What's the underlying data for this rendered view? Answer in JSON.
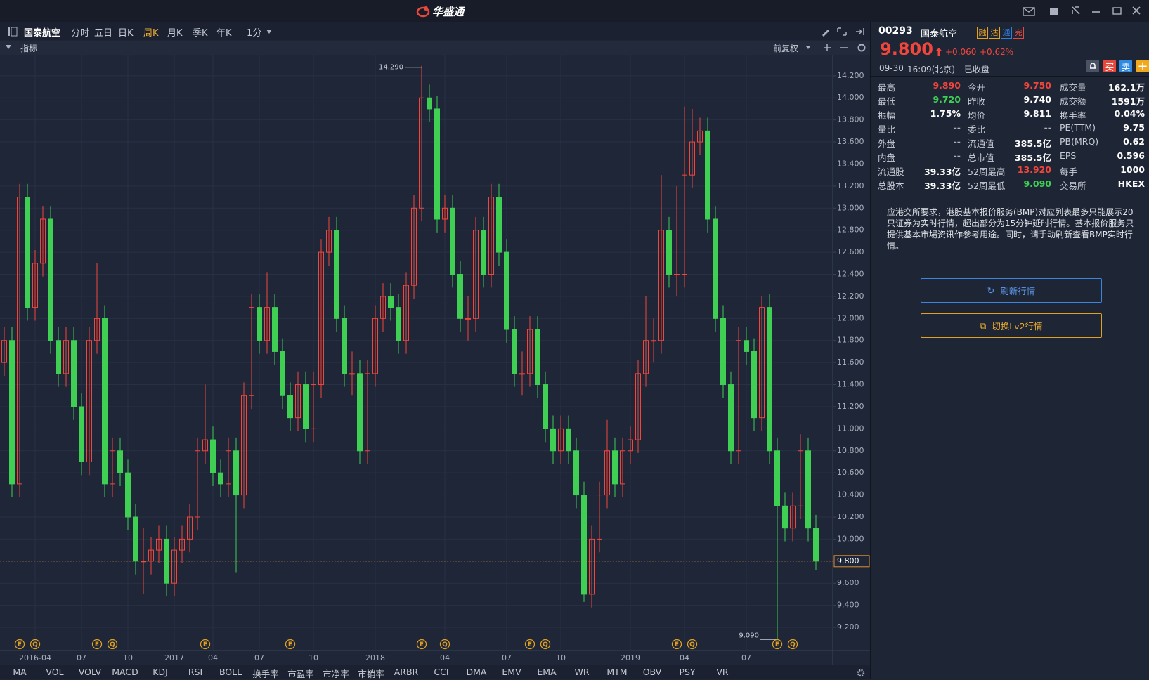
{
  "app": {
    "title": "华盛通"
  },
  "toolbar": {
    "stock": "国泰航空",
    "periods": [
      "分时",
      "五日",
      "日K",
      "周K",
      "月K",
      "季K",
      "年K",
      "1分"
    ],
    "active_period": "周K",
    "indicator": "指标",
    "adjust": "前复权"
  },
  "chart_data": {
    "type": "candlestick",
    "categories": [
      null,
      null,
      null,
      null,
      "2016-04",
      null,
      null,
      null,
      null,
      null,
      "07",
      null,
      null,
      null,
      null,
      null,
      "10",
      null,
      null,
      null,
      null,
      null,
      "2017",
      null,
      null,
      null,
      null,
      "04",
      null,
      null,
      null,
      null,
      null,
      "07",
      null,
      null,
      null,
      null,
      null,
      null,
      "10",
      null,
      null,
      null,
      null,
      null,
      null,
      null,
      "2018",
      null,
      null,
      null,
      null,
      null,
      null,
      null,
      null,
      "04",
      null,
      null,
      null,
      null,
      null,
      null,
      null,
      "07",
      null,
      null,
      null,
      null,
      null,
      null,
      "10",
      null,
      null,
      null,
      null,
      null,
      null,
      null,
      null,
      "2019",
      null,
      null,
      null,
      null,
      null,
      null,
      "04",
      null,
      null,
      null,
      null,
      null,
      null,
      null,
      "07",
      null,
      null,
      null,
      null,
      null,
      null,
      null,
      null,
      null
    ],
    "open": [
      11.6,
      11.8,
      10.5,
      13.1,
      12.1,
      12.5,
      12.9,
      11.8,
      11.5,
      11.8,
      11.2,
      10.7,
      11.8,
      12.0,
      10.5,
      10.8,
      10.6,
      10.2,
      9.8,
      9.8,
      9.9,
      10.0,
      9.6,
      9.9,
      10.0,
      10.2,
      10.8,
      10.9,
      10.6,
      10.5,
      10.8,
      10.4,
      11.3,
      12.1,
      11.8,
      12.1,
      11.7,
      11.3,
      11.1,
      11.4,
      11.0,
      11.4,
      12.6,
      12.8,
      12.0,
      11.5,
      11.5,
      10.8,
      11.5,
      12.0,
      12.2,
      12.1,
      11.8,
      12.3,
      13.0,
      14.0,
      13.9,
      12.9,
      13.0,
      12.4,
      12.0,
      12.0,
      12.8,
      12.4,
      13.1,
      12.6,
      11.9,
      11.5,
      11.5,
      11.9,
      11.4,
      11.0,
      10.8,
      11.0,
      10.8,
      10.4,
      9.5,
      10.0,
      10.4,
      10.8,
      10.5,
      10.8,
      10.9,
      11.5,
      11.8,
      11.8,
      12.8,
      12.4,
      12.4,
      13.3,
      13.6,
      13.7,
      12.9,
      12.0,
      11.4,
      10.8,
      11.8,
      11.7,
      11.1,
      12.1,
      10.8,
      10.3,
      10.1,
      10.3,
      10.8,
      10.1
    ],
    "high": [
      11.92,
      11.92,
      13.22,
      13.22,
      12.62,
      13.02,
      13.02,
      11.92,
      11.92,
      11.92,
      11.32,
      11.92,
      12.5,
      12.12,
      10.92,
      10.92,
      10.72,
      10.32,
      10.1,
      10.02,
      10.12,
      10.12,
      10.02,
      10.12,
      10.32,
      10.92,
      11.4,
      11.02,
      10.72,
      10.92,
      10.92,
      11.42,
      12.22,
      12.22,
      12.42,
      12.22,
      11.82,
      11.42,
      11.52,
      11.52,
      11.52,
      12.72,
      12.92,
      12.92,
      12.12,
      11.7,
      11.62,
      11.62,
      12.12,
      12.32,
      12.32,
      12.22,
      12.42,
      13.12,
      14.29,
      14.12,
      14.02,
      13.12,
      13.12,
      12.52,
      12.2,
      12.92,
      12.92,
      13.22,
      13.22,
      12.72,
      12.02,
      11.7,
      12.02,
      12.02,
      11.52,
      11.12,
      11.12,
      11.12,
      10.92,
      10.52,
      10.12,
      10.52,
      11.08,
      10.92,
      10.92,
      11.02,
      11.62,
      12.2,
      12.0,
      13.3,
      12.92,
      13.2,
      13.92,
      13.9,
      13.82,
      13.82,
      13.02,
      12.12,
      11.52,
      11.92,
      11.92,
      11.82,
      12.2,
      12.22,
      10.92,
      10.42,
      10.42,
      10.95,
      10.92,
      10.22
    ],
    "low": [
      11.48,
      10.38,
      10.38,
      11.98,
      11.98,
      12.38,
      11.68,
      11.38,
      11.38,
      11.08,
      10.58,
      10.58,
      11.68,
      10.38,
      10.38,
      10.48,
      10.08,
      9.68,
      9.5,
      9.68,
      9.78,
      9.48,
      9.48,
      9.78,
      9.88,
      10.08,
      10.68,
      10.48,
      10.38,
      10.38,
      9.7,
      10.28,
      11.18,
      11.68,
      11.68,
      11.58,
      11.18,
      10.98,
      10.98,
      10.88,
      10.88,
      11.28,
      12.48,
      11.88,
      11.38,
      11.3,
      10.68,
      10.68,
      11.38,
      11.88,
      11.98,
      11.68,
      11.68,
      12.18,
      12.88,
      13.78,
      12.78,
      12.78,
      12.28,
      11.88,
      11.8,
      11.88,
      12.28,
      12.28,
      12.48,
      11.78,
      11.38,
      11.3,
      11.38,
      11.28,
      10.88,
      10.68,
      10.68,
      10.68,
      10.28,
      9.43,
      9.38,
      9.88,
      10.28,
      10.38,
      10.38,
      10.68,
      10.78,
      11.38,
      11.6,
      11.68,
      12.28,
      12.2,
      12.28,
      13.18,
      13.48,
      12.78,
      11.88,
      11.28,
      10.68,
      10.68,
      11.58,
      10.98,
      10.98,
      10.68,
      9.09,
      9.98,
      9.98,
      10.18,
      9.98,
      9.72
    ],
    "close": [
      11.8,
      10.5,
      13.1,
      12.1,
      12.5,
      12.9,
      11.8,
      11.5,
      11.8,
      11.2,
      10.7,
      11.8,
      12.0,
      10.5,
      10.8,
      10.6,
      10.2,
      9.8,
      9.8,
      9.9,
      10.0,
      9.6,
      9.9,
      10.0,
      10.2,
      10.8,
      10.9,
      10.6,
      10.5,
      10.8,
      10.4,
      11.3,
      12.1,
      11.8,
      12.1,
      11.7,
      11.3,
      11.1,
      11.4,
      11.0,
      11.4,
      12.6,
      12.8,
      12.0,
      11.5,
      11.5,
      10.8,
      11.5,
      12.0,
      12.2,
      12.1,
      11.8,
      12.3,
      13.0,
      14.0,
      13.9,
      12.9,
      13.0,
      12.4,
      12.0,
      12.0,
      12.8,
      12.4,
      13.1,
      12.6,
      11.9,
      11.5,
      11.5,
      11.9,
      11.4,
      11.0,
      10.8,
      11.0,
      10.8,
      10.4,
      9.5,
      10.0,
      10.4,
      10.8,
      10.5,
      10.8,
      10.9,
      11.5,
      11.8,
      11.8,
      12.8,
      12.4,
      12.4,
      13.3,
      13.6,
      13.7,
      12.9,
      12.0,
      11.4,
      10.8,
      11.8,
      11.7,
      11.1,
      12.1,
      10.8,
      10.3,
      10.1,
      10.3,
      10.8,
      10.1,
      9.8
    ],
    "events": [
      null,
      null,
      "E",
      null,
      "Q",
      null,
      null,
      null,
      null,
      null,
      null,
      null,
      "E",
      null,
      "Q",
      null,
      null,
      null,
      null,
      null,
      null,
      null,
      null,
      null,
      null,
      null,
      "E",
      null,
      null,
      null,
      null,
      null,
      null,
      null,
      null,
      null,
      null,
      "E",
      null,
      null,
      null,
      null,
      null,
      null,
      null,
      null,
      null,
      null,
      null,
      null,
      null,
      null,
      null,
      null,
      "E",
      null,
      null,
      "Q",
      null,
      null,
      null,
      null,
      null,
      null,
      null,
      null,
      null,
      null,
      "E",
      null,
      "Q",
      null,
      null,
      null,
      null,
      null,
      null,
      null,
      null,
      null,
      null,
      null,
      null,
      null,
      null,
      null,
      null,
      "E",
      null,
      "Q",
      null,
      null,
      null,
      null,
      null,
      null,
      null,
      null,
      null,
      null,
      "E",
      null,
      "Q",
      null,
      null,
      null
    ],
    "up_color": "#f0463c",
    "down_color": "#3ecf53",
    "ylim": [
      8.99,
      14.39
    ],
    "yticks": [
      {
        "value": 9.2,
        "label": "9.200"
      },
      {
        "value": 9.4,
        "label": "9.400"
      },
      {
        "value": 9.6,
        "label": "9.600"
      },
      {
        "value": 9.8,
        "label": "9.800"
      },
      {
        "value": 10.0,
        "label": "10.000"
      },
      {
        "value": 10.2,
        "label": "10.200"
      },
      {
        "value": 10.4,
        "label": "10.400"
      },
      {
        "value": 10.6,
        "label": "10.600"
      },
      {
        "value": 10.8,
        "label": "10.800"
      },
      {
        "value": 11.0,
        "label": "11.000"
      },
      {
        "value": 11.2,
        "label": "11.200"
      },
      {
        "value": 11.4,
        "label": "11.400"
      },
      {
        "value": 11.6,
        "label": "11.600"
      },
      {
        "value": 11.8,
        "label": "11.800"
      },
      {
        "value": 12.0,
        "label": "12.000"
      },
      {
        "value": 12.2,
        "label": "12.200"
      },
      {
        "value": 12.4,
        "label": "12.400"
      },
      {
        "value": 12.6,
        "label": "12.600"
      },
      {
        "value": 12.8,
        "label": "12.800"
      },
      {
        "value": 13.0,
        "label": "13.000"
      },
      {
        "value": 13.2,
        "label": "13.200"
      },
      {
        "value": 13.4,
        "label": "13.400"
      },
      {
        "value": 13.6,
        "label": "13.600"
      },
      {
        "value": 13.8,
        "label": "13.800"
      },
      {
        "value": 14.0,
        "label": "14.000"
      },
      {
        "value": 14.2,
        "label": "14.200"
      }
    ],
    "grid": true,
    "max_label": "14.290",
    "min_label": "9.090",
    "last_price": 9.8,
    "last_price_label": "9.800"
  },
  "indicators": [
    "MA",
    "VOL",
    "VOLV",
    "MACD",
    "KDJ",
    "RSI",
    "BOLL",
    "换手率",
    "市盈率",
    "市净率",
    "市销率",
    "ARBR",
    "CCI",
    "DMA",
    "EMV",
    "EMA",
    "WR",
    "MTM",
    "OBV",
    "PSY",
    "VR"
  ],
  "quote": {
    "code": "00293",
    "name": "国泰航空",
    "badges": [
      {
        "text": "融",
        "color": "#e8a21e"
      },
      {
        "text": "沽",
        "color": "#e8a21e"
      },
      {
        "text": "通",
        "color": "#2f7fe0"
      },
      {
        "text": "完",
        "color": "#e8483b"
      }
    ],
    "price": "9.800",
    "change": "+0.060",
    "change_pct": "+0.62%",
    "date": "09-30",
    "time": "16:09(北京)",
    "status": "已收盘",
    "buy": "买",
    "sell": "卖",
    "stats": [
      [
        {
          "label": "最高",
          "value": "9.890",
          "color": "#f0463c"
        },
        {
          "label": "今开",
          "value": "9.750",
          "color": "#f0463c"
        },
        {
          "label": "成交量",
          "value": "162.1万",
          "color": "#ffffff"
        }
      ],
      [
        {
          "label": "最低",
          "value": "9.720",
          "color": "#3ecf53"
        },
        {
          "label": "昨收",
          "value": "9.740",
          "color": "#ffffff"
        },
        {
          "label": "成交额",
          "value": "1591万",
          "color": "#ffffff"
        }
      ],
      [
        {
          "label": "振幅",
          "value": "1.75%",
          "color": "#ffffff"
        },
        {
          "label": "均价",
          "value": "9.811",
          "color": "#ffffff"
        },
        {
          "label": "换手率",
          "value": "0.04%",
          "color": "#ffffff"
        }
      ],
      [
        {
          "label": "量比",
          "value": "--",
          "color": "#aab0bd"
        },
        {
          "label": "委比",
          "value": "--",
          "color": "#aab0bd"
        },
        {
          "label": "PE(TTM)",
          "value": "9.75",
          "color": "#ffffff"
        }
      ],
      [
        {
          "label": "外盘",
          "value": "--",
          "color": "#aab0bd"
        },
        {
          "label": "流通值",
          "value": "385.5亿",
          "color": "#ffffff"
        },
        {
          "label": "PB(MRQ)",
          "value": "0.62",
          "color": "#ffffff"
        }
      ],
      [
        {
          "label": "内盘",
          "value": "--",
          "color": "#aab0bd"
        },
        {
          "label": "总市值",
          "value": "385.5亿",
          "color": "#ffffff"
        },
        {
          "label": "EPS",
          "value": "0.596",
          "color": "#ffffff"
        }
      ],
      [
        {
          "label": "流通股",
          "value": "39.33亿",
          "color": "#ffffff"
        },
        {
          "label": "52周最高",
          "value": "13.920",
          "color": "#f0463c"
        },
        {
          "label": "每手",
          "value": "1000",
          "color": "#ffffff"
        }
      ],
      [
        {
          "label": "总股本",
          "value": "39.33亿",
          "color": "#ffffff"
        },
        {
          "label": "52周最低",
          "value": "9.090",
          "color": "#3ecf53"
        },
        {
          "label": "交易所",
          "value": "HKEX",
          "color": "#ffffff"
        }
      ]
    ],
    "notice": "应港交所要求，港股基本报价服务(BMP)对应列表最多只能展示20只证券为实时行情，超出部分为15分钟延时行情。基本报价服务只提供基本市場资讯作参考用途。同时，请手动刷新查看BMP实时行情。",
    "refresh": "刷新行情",
    "switch": "切换Lv2行情"
  }
}
